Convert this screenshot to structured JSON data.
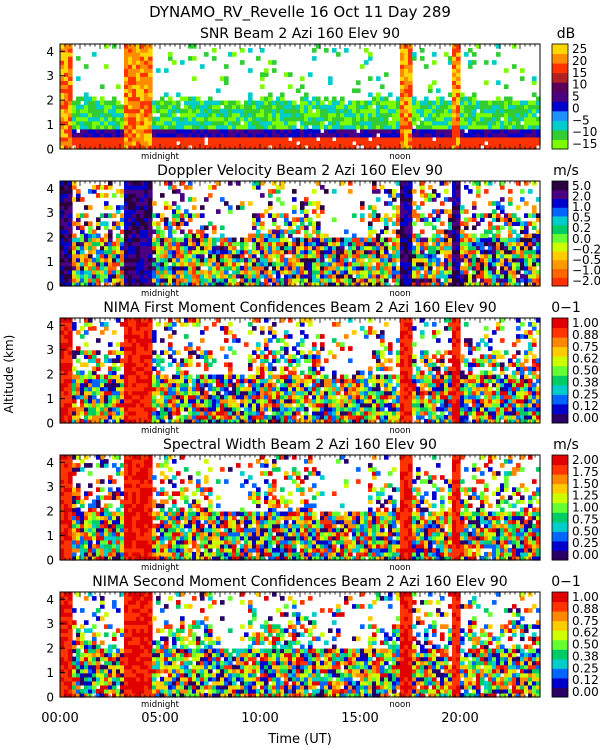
{
  "figure": {
    "main_title": "DYNAMO_RV_Revelle  16 Oct 11 Day 289",
    "ylabel": "Altitude (km)",
    "xlabel": "Time (UT)",
    "x_ticks": [
      "00:00",
      "05:00",
      "10:00",
      "15:00",
      "20:00"
    ],
    "x_tick_hours": [
      0,
      5,
      10,
      15,
      20
    ],
    "x_range_hours": [
      0,
      24
    ],
    "midnight_label": "midnight",
    "midnight_hour": 5.0,
    "noon_label": "noon",
    "noon_hour": 17.0
  },
  "chart_data": [
    {
      "type": "heatmap",
      "title": "SNR Beam 2 Azi 160 Elev 90",
      "units": "dB",
      "ylim": [
        0,
        4.3
      ],
      "y_ticks": [
        "4",
        "3",
        "2",
        "1",
        "0"
      ],
      "colorbar_labels": [
        "25",
        "20",
        "15",
        "10",
        "5",
        "0",
        "−5",
        "−10",
        "−15"
      ],
      "colors": [
        "#7cfc00",
        "#33cc33",
        "#00cccc",
        "#1e90ff",
        "#0000cd",
        "#4b0082",
        "#5a005a",
        "#b22222",
        "#ff3300",
        "#ff8c00",
        "#ffd700"
      ]
    },
    {
      "type": "heatmap",
      "title": "Doppler Velocity Beam 2 Azi 160 Elev 90",
      "units": "m/s",
      "ylim": [
        0,
        4.3
      ],
      "y_ticks": [
        "4",
        "3",
        "2",
        "1",
        "0"
      ],
      "colorbar_labels": [
        "5.0",
        "2.0",
        "1.0",
        "0.5",
        "0.2",
        "0.0",
        "−0.2",
        "−0.5",
        "−1.0",
        "−2.0"
      ],
      "colors": [
        "#ff3300",
        "#ff6600",
        "#ff9900",
        "#ffcc00",
        "#ccff00",
        "#66ff33",
        "#00cc66",
        "#00cccc",
        "#0066ff",
        "#0000cc",
        "#4b0082",
        "#2a0040"
      ]
    },
    {
      "type": "heatmap",
      "title": "NIMA First Moment Confidences Beam 2 Azi 160 Elev 90",
      "units": "0−1",
      "ylim": [
        0,
        4.3
      ],
      "y_ticks": [
        "4",
        "3",
        "2",
        "1",
        "0"
      ],
      "colorbar_labels": [
        "1.00",
        "0.88",
        "0.75",
        "0.62",
        "0.50",
        "0.38",
        "0.25",
        "0.12",
        "0.00"
      ],
      "colors": [
        "#2a0066",
        "#0000cc",
        "#0066ff",
        "#00cccc",
        "#00cc66",
        "#66ff33",
        "#ccff00",
        "#ffcc00",
        "#ff8800",
        "#ff3300",
        "#e00000"
      ]
    },
    {
      "type": "heatmap",
      "title": "Spectral Width Beam 2 Azi 160 Elev 90",
      "units": "m/s",
      "ylim": [
        0,
        4.3
      ],
      "y_ticks": [
        "4",
        "3",
        "2",
        "1",
        "0"
      ],
      "colorbar_labels": [
        "2.00",
        "1.75",
        "1.50",
        "1.25",
        "1.00",
        "0.75",
        "0.50",
        "0.25",
        "0.00"
      ],
      "colors": [
        "#2a0066",
        "#0000cc",
        "#0066ff",
        "#00cccc",
        "#00cc66",
        "#66ff33",
        "#ccff00",
        "#ffcc00",
        "#ff8800",
        "#ff3300",
        "#e00000"
      ]
    },
    {
      "type": "heatmap",
      "title": "NIMA Second Moment Confidences Beam 2 Azi 160 Elev 90",
      "units": "0−1",
      "ylim": [
        0,
        4.3
      ],
      "y_ticks": [
        "4",
        "3",
        "2",
        "1",
        "0"
      ],
      "colorbar_labels": [
        "1.00",
        "0.88",
        "0.75",
        "0.62",
        "0.50",
        "0.38",
        "0.25",
        "0.12",
        "0.00"
      ],
      "colors": [
        "#2a0066",
        "#0000cc",
        "#0066ff",
        "#00cccc",
        "#00cc66",
        "#66ff33",
        "#ccff00",
        "#ffcc00",
        "#ff8800",
        "#ff3300",
        "#e00000"
      ]
    }
  ]
}
